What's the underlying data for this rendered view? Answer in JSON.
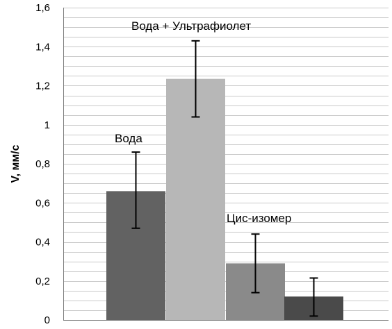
{
  "chart_data": {
    "type": "bar",
    "ylabel": "V, мм/с",
    "ylim": [
      0,
      1.6
    ],
    "yticks": [
      "0",
      "0,2",
      "0,4",
      "0,6",
      "0,8",
      "1",
      "1,2",
      "1,4",
      "1,6"
    ],
    "ytick_values": [
      0,
      0.2,
      0.4,
      0.6,
      0.8,
      1.0,
      1.2,
      1.4,
      1.6
    ],
    "minor_grid_step": 0.05,
    "grid": true,
    "bars": [
      {
        "label": "Вода",
        "value": 0.66,
        "err_low": 0.47,
        "err_high": 0.86,
        "color": "#626262"
      },
      {
        "label": "Вода + Ультрафиолет",
        "value": 1.235,
        "err_low": 1.04,
        "err_high": 1.43,
        "color": "#b7b7b7"
      },
      {
        "label": "Цис-изомер",
        "value": 0.29,
        "err_low": 0.14,
        "err_high": 0.44,
        "color": "#8a8a8a"
      },
      {
        "label": "",
        "value": 0.12,
        "err_low": 0.02,
        "err_high": 0.215,
        "color": "#4a4a4a"
      }
    ]
  }
}
